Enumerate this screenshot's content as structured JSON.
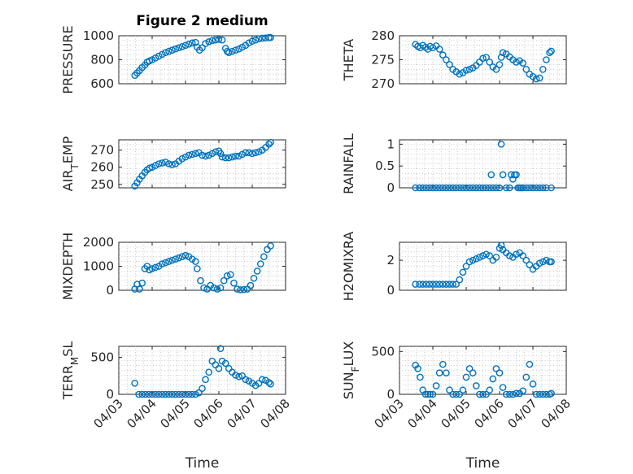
{
  "figure": {
    "title": "Figure 2 medium",
    "marker_color": "#0072BD",
    "x_tick_labels": [
      "04/03",
      "04/04",
      "04/05",
      "04/06",
      "04/07",
      "04/08"
    ],
    "x_axis_label": "Time"
  },
  "chart_data": [
    {
      "type": "scatter",
      "title": "Figure 2 medium",
      "ylabel": "PRESSURE",
      "ylim": [
        600,
        1000
      ],
      "yticks": [
        600,
        800,
        1000
      ],
      "xlim": [
        "04/03",
        "04/08"
      ],
      "grid": true,
      "marker": "o",
      "color": "#0072BD",
      "series": [
        {
          "x": [
            3.48,
            3.55,
            3.62,
            3.7,
            3.78,
            3.85,
            3.92,
            4.0,
            4.1,
            4.2,
            4.3,
            4.4,
            4.5,
            4.6,
            4.7,
            4.8,
            4.9,
            5.0,
            5.1,
            5.2,
            5.3,
            5.35,
            5.42,
            5.5,
            5.6,
            5.7,
            5.8,
            5.9,
            6.0,
            6.1,
            6.2,
            6.25,
            6.3,
            6.4,
            6.5,
            6.6,
            6.7,
            6.8,
            6.9,
            7.0,
            7.1,
            7.2,
            7.3,
            7.4,
            7.5,
            7.55
          ],
          "y": [
            670,
            690,
            710,
            735,
            755,
            780,
            790,
            800,
            815,
            830,
            845,
            860,
            870,
            880,
            890,
            900,
            910,
            920,
            930,
            940,
            945,
            905,
            880,
            900,
            935,
            950,
            960,
            965,
            970,
            965,
            895,
            870,
            860,
            870,
            880,
            890,
            905,
            920,
            940,
            955,
            965,
            975,
            980,
            982,
            985,
            985
          ]
        }
      ]
    },
    {
      "type": "scatter",
      "ylabel": "THETA",
      "ylim": [
        270,
        280
      ],
      "yticks": [
        270,
        275,
        280
      ],
      "xlim": [
        "04/03",
        "04/08"
      ],
      "grid": true,
      "marker": "o",
      "color": "#0072BD",
      "series": [
        {
          "x": [
            3.48,
            3.55,
            3.62,
            3.7,
            3.78,
            3.85,
            3.92,
            4.0,
            4.1,
            4.2,
            4.3,
            4.4,
            4.5,
            4.6,
            4.7,
            4.8,
            4.9,
            5.0,
            5.1,
            5.2,
            5.3,
            5.4,
            5.5,
            5.6,
            5.7,
            5.8,
            5.9,
            6.0,
            6.05,
            6.1,
            6.2,
            6.3,
            6.4,
            6.5,
            6.6,
            6.7,
            6.8,
            6.9,
            7.0,
            7.1,
            7.2,
            7.3,
            7.4,
            7.5,
            7.55
          ],
          "y": [
            278.2,
            277.8,
            277.5,
            278,
            277.6,
            277.2,
            277.8,
            277.5,
            277.9,
            277.2,
            276,
            275,
            274,
            273,
            272.5,
            272,
            272.3,
            272.8,
            273,
            273.3,
            273.8,
            274.5,
            275.3,
            275.5,
            274.5,
            273.5,
            273,
            274,
            275.5,
            276.5,
            276.2,
            275.6,
            275,
            274.5,
            274.8,
            274.3,
            273,
            272,
            271.5,
            271,
            271.2,
            273,
            275,
            276.5,
            276.8
          ]
        }
      ]
    },
    {
      "type": "scatter",
      "ylabel": "AIR_TEMP",
      "ylim": [
        248,
        276
      ],
      "yticks": [
        250,
        260,
        270
      ],
      "ytick_labels": [
        "250",
        "260",
        "270"
      ],
      "xlim": [
        "04/03",
        "04/08"
      ],
      "grid": true,
      "marker": "o",
      "color": "#0072BD",
      "series": [
        {
          "x": [
            3.48,
            3.55,
            3.62,
            3.7,
            3.78,
            3.85,
            3.92,
            4.0,
            4.1,
            4.2,
            4.3,
            4.4,
            4.5,
            4.6,
            4.7,
            4.8,
            4.9,
            5.0,
            5.1,
            5.2,
            5.3,
            5.4,
            5.5,
            5.6,
            5.7,
            5.8,
            5.9,
            6.0,
            6.05,
            6.1,
            6.2,
            6.3,
            6.4,
            6.5,
            6.6,
            6.7,
            6.8,
            6.9,
            7.0,
            7.1,
            7.2,
            7.3,
            7.4,
            7.5,
            7.55
          ],
          "y": [
            249,
            251,
            253,
            255,
            257,
            258.5,
            259.5,
            260,
            261,
            262,
            262.5,
            263,
            262,
            261.5,
            262,
            263.5,
            265,
            266,
            267,
            267.5,
            268,
            268.5,
            267,
            266.5,
            267,
            268,
            269,
            269.5,
            268,
            266,
            265.5,
            265.5,
            266,
            266.5,
            266.5,
            267.5,
            268.5,
            268.5,
            268,
            268.5,
            269,
            270,
            271.5,
            273.5,
            274.5
          ]
        }
      ]
    },
    {
      "type": "scatter",
      "ylabel": "RAINFALL",
      "ylim": [
        0,
        1.1
      ],
      "yticks": [
        0,
        0.5,
        1
      ],
      "ytick_labels": [
        "0",
        "0.5",
        "1"
      ],
      "xlim": [
        "04/03",
        "04/08"
      ],
      "grid": true,
      "marker": "o",
      "color": "#0072BD",
      "series": [
        {
          "x": [
            3.48,
            3.6,
            3.7,
            3.8,
            3.9,
            4.0,
            4.1,
            4.2,
            4.3,
            4.4,
            4.5,
            4.6,
            4.7,
            4.8,
            4.9,
            5.0,
            5.1,
            5.2,
            5.3,
            5.4,
            5.5,
            5.6,
            5.7,
            5.75,
            5.8,
            5.9,
            6.0,
            6.05,
            6.1,
            6.2,
            6.3,
            6.35,
            6.4,
            6.45,
            6.5,
            6.55,
            6.6,
            6.65,
            6.7,
            6.8,
            6.9,
            7.0,
            7.1,
            7.2,
            7.3,
            7.4,
            7.55
          ],
          "y": [
            0,
            0,
            0,
            0,
            0,
            0,
            0,
            0,
            0,
            0,
            0,
            0,
            0,
            0,
            0,
            0,
            0,
            0,
            0,
            0,
            0,
            0,
            0,
            0.3,
            0,
            0,
            0,
            1,
            0.3,
            0,
            0,
            0.3,
            0.2,
            0.3,
            0.3,
            0,
            0,
            0,
            0,
            0,
            0,
            0,
            0,
            0,
            0,
            0,
            0
          ]
        }
      ]
    },
    {
      "type": "scatter",
      "ylabel": "MIXDEPTH",
      "ylim": [
        0,
        2000
      ],
      "yticks": [
        0,
        1000,
        2000
      ],
      "xlim": [
        "04/03",
        "04/08"
      ],
      "grid": true,
      "marker": "o",
      "color": "#0072BD",
      "series": [
        {
          "x": [
            3.48,
            3.55,
            3.62,
            3.7,
            3.78,
            3.85,
            3.92,
            4.0,
            4.1,
            4.2,
            4.3,
            4.4,
            4.5,
            4.6,
            4.7,
            4.8,
            4.9,
            5.0,
            5.1,
            5.2,
            5.3,
            5.35,
            5.45,
            5.55,
            5.65,
            5.75,
            5.85,
            5.95,
            6.05,
            6.15,
            6.25,
            6.35,
            6.45,
            6.55,
            6.65,
            6.75,
            6.85,
            6.95,
            7.05,
            7.15,
            7.25,
            7.35,
            7.45,
            7.55
          ],
          "y": [
            50,
            250,
            50,
            300,
            900,
            1000,
            850,
            900,
            950,
            1000,
            1100,
            1150,
            1200,
            1250,
            1300,
            1350,
            1400,
            1450,
            1400,
            1300,
            1200,
            900,
            400,
            100,
            50,
            200,
            100,
            50,
            100,
            400,
            600,
            650,
            300,
            50,
            20,
            30,
            50,
            200,
            500,
            800,
            1100,
            1400,
            1700,
            1850
          ]
        }
      ]
    },
    {
      "type": "scatter",
      "ylabel": "H2OMIXRA",
      "ylim": [
        0,
        3.2
      ],
      "yticks": [
        0,
        2
      ],
      "xlim": [
        "04/03",
        "04/08"
      ],
      "grid": true,
      "marker": "o",
      "color": "#0072BD",
      "series": [
        {
          "x": [
            3.48,
            3.6,
            3.7,
            3.8,
            3.9,
            4.0,
            4.1,
            4.2,
            4.3,
            4.4,
            4.5,
            4.6,
            4.7,
            4.8,
            4.9,
            5.0,
            5.1,
            5.2,
            5.3,
            5.4,
            5.5,
            5.6,
            5.7,
            5.8,
            5.9,
            6.0,
            6.05,
            6.1,
            6.2,
            6.3,
            6.4,
            6.5,
            6.6,
            6.7,
            6.8,
            6.9,
            7.0,
            7.1,
            7.2,
            7.3,
            7.4,
            7.5,
            7.55
          ],
          "y": [
            0.4,
            0.4,
            0.4,
            0.4,
            0.4,
            0.4,
            0.4,
            0.4,
            0.4,
            0.4,
            0.4,
            0.4,
            0.4,
            0.7,
            1.2,
            1.6,
            1.9,
            2.0,
            2.1,
            2.2,
            2.3,
            2.4,
            2.3,
            2.0,
            2.2,
            2.8,
            3.0,
            2.7,
            2.5,
            2.3,
            2.2,
            2.4,
            2.5,
            2.3,
            2.0,
            1.7,
            1.4,
            1.6,
            1.8,
            1.9,
            2.0,
            1.9,
            1.9
          ]
        }
      ]
    },
    {
      "type": "scatter",
      "ylabel": "TERR_MSL",
      "ylim": [
        0,
        650
      ],
      "yticks": [
        0,
        500
      ],
      "xlim": [
        "04/03",
        "04/08"
      ],
      "grid": true,
      "marker": "o",
      "color": "#0072BD",
      "series": [
        {
          "x": [
            3.48,
            3.6,
            3.7,
            3.8,
            3.9,
            4.0,
            4.1,
            4.2,
            4.3,
            4.4,
            4.5,
            4.6,
            4.7,
            4.8,
            4.9,
            5.0,
            5.1,
            5.2,
            5.3,
            5.4,
            5.5,
            5.6,
            5.7,
            5.8,
            5.9,
            6.0,
            6.05,
            6.1,
            6.2,
            6.3,
            6.4,
            6.5,
            6.6,
            6.7,
            6.8,
            6.9,
            7.0,
            7.1,
            7.2,
            7.3,
            7.4,
            7.5,
            7.55
          ],
          "y": [
            150,
            0,
            0,
            0,
            0,
            0,
            0,
            0,
            0,
            0,
            0,
            0,
            0,
            0,
            0,
            0,
            0,
            0,
            0,
            20,
            80,
            200,
            300,
            450,
            400,
            350,
            620,
            450,
            420,
            350,
            300,
            260,
            240,
            250,
            200,
            180,
            150,
            120,
            150,
            200,
            190,
            160,
            140
          ]
        }
      ]
    },
    {
      "type": "scatter",
      "ylabel": "SUN_FLUX",
      "ylim": [
        0,
        560
      ],
      "yticks": [
        0,
        500
      ],
      "xlim": [
        "04/03",
        "04/08"
      ],
      "grid": true,
      "marker": "o",
      "color": "#0072BD",
      "series": [
        {
          "x": [
            3.48,
            3.55,
            3.62,
            3.7,
            3.78,
            3.85,
            3.92,
            4.0,
            4.1,
            4.2,
            4.3,
            4.4,
            4.5,
            4.6,
            4.7,
            4.8,
            4.9,
            5.0,
            5.1,
            5.2,
            5.3,
            5.4,
            5.5,
            5.6,
            5.7,
            5.8,
            5.9,
            6.0,
            6.1,
            6.2,
            6.3,
            6.4,
            6.5,
            6.6,
            6.7,
            6.8,
            6.9,
            7.0,
            7.1,
            7.2,
            7.3,
            7.4,
            7.5,
            7.55
          ],
          "y": [
            340,
            300,
            200,
            50,
            0,
            0,
            0,
            0,
            100,
            250,
            350,
            250,
            50,
            0,
            0,
            0,
            50,
            200,
            300,
            250,
            100,
            0,
            0,
            0,
            50,
            180,
            300,
            250,
            80,
            0,
            0,
            0,
            10,
            10,
            40,
            200,
            350,
            120,
            0,
            0,
            0,
            0,
            0,
            10
          ]
        }
      ]
    }
  ]
}
